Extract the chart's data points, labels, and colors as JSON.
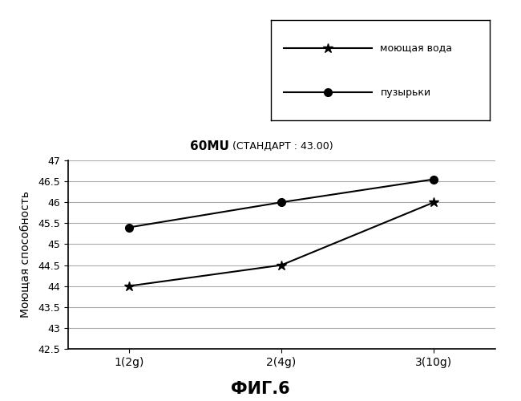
{
  "title_bold": "60MU",
  "title_normal": " (СТАНДАРТ : 43.00)",
  "xlabel_bottom": "ФИГ.6",
  "ylabel": "Моющая способность",
  "x_labels": [
    "1(2g)",
    "2(4g)",
    "3(10g)"
  ],
  "x_values": [
    1,
    2,
    3
  ],
  "series_washing_water": {
    "label": "моющая вода",
    "values": [
      44.0,
      44.5,
      46.0
    ],
    "color": "#000000",
    "marker": "*",
    "markersize": 9,
    "linewidth": 1.5
  },
  "series_bubbles": {
    "label": "пузырьки",
    "values": [
      45.4,
      46.0,
      46.55
    ],
    "color": "#000000",
    "marker": "o",
    "markersize": 7,
    "linewidth": 1.5
  },
  "ylim": [
    42.5,
    47
  ],
  "yticks": [
    42.5,
    43,
    43.5,
    44,
    44.5,
    45,
    45.5,
    46,
    46.5,
    47
  ],
  "background_color": "#ffffff"
}
